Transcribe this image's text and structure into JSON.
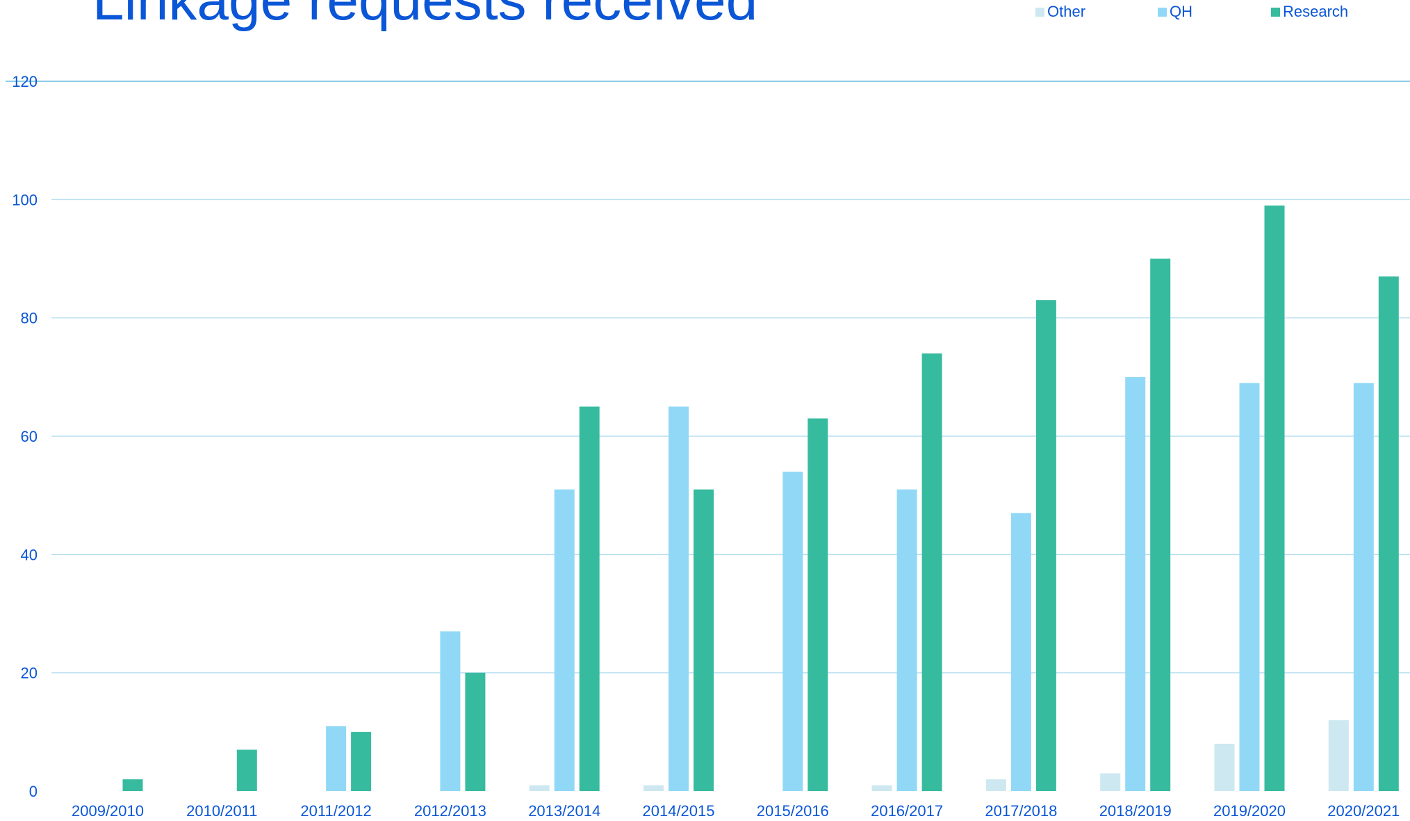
{
  "chart_data": {
    "type": "bar",
    "title": "Linkage requests received",
    "xlabel": "",
    "ylabel": "",
    "ylim": [
      0,
      120
    ],
    "yticks": [
      0,
      20,
      40,
      60,
      80,
      100,
      120
    ],
    "grid": true,
    "legend_position": "top-right",
    "categories": [
      "2009/2010",
      "2010/2011",
      "2011/2012",
      "2012/2013",
      "2013/2014",
      "2014/2015",
      "2015/2016",
      "2016/2017",
      "2017/2018",
      "2018/2019",
      "2019/2020",
      "2020/2021"
    ],
    "series": [
      {
        "name": "Other",
        "color": "#cde8f0",
        "values": [
          0,
          0,
          0,
          0,
          1,
          1,
          0,
          1,
          2,
          3,
          8,
          12
        ]
      },
      {
        "name": "QH",
        "color": "#91d8f7",
        "values": [
          0,
          0,
          11,
          27,
          51,
          65,
          54,
          51,
          47,
          70,
          69,
          69
        ]
      },
      {
        "name": "Research",
        "color": "#37bb9f",
        "values": [
          2,
          7,
          10,
          20,
          65,
          51,
          63,
          74,
          83,
          90,
          99,
          87
        ]
      }
    ]
  },
  "colors": {
    "title": "#0a56d6",
    "text": "#0a56d6",
    "gridline": "#b7dff0",
    "top_gridline": "#8ccde8"
  }
}
